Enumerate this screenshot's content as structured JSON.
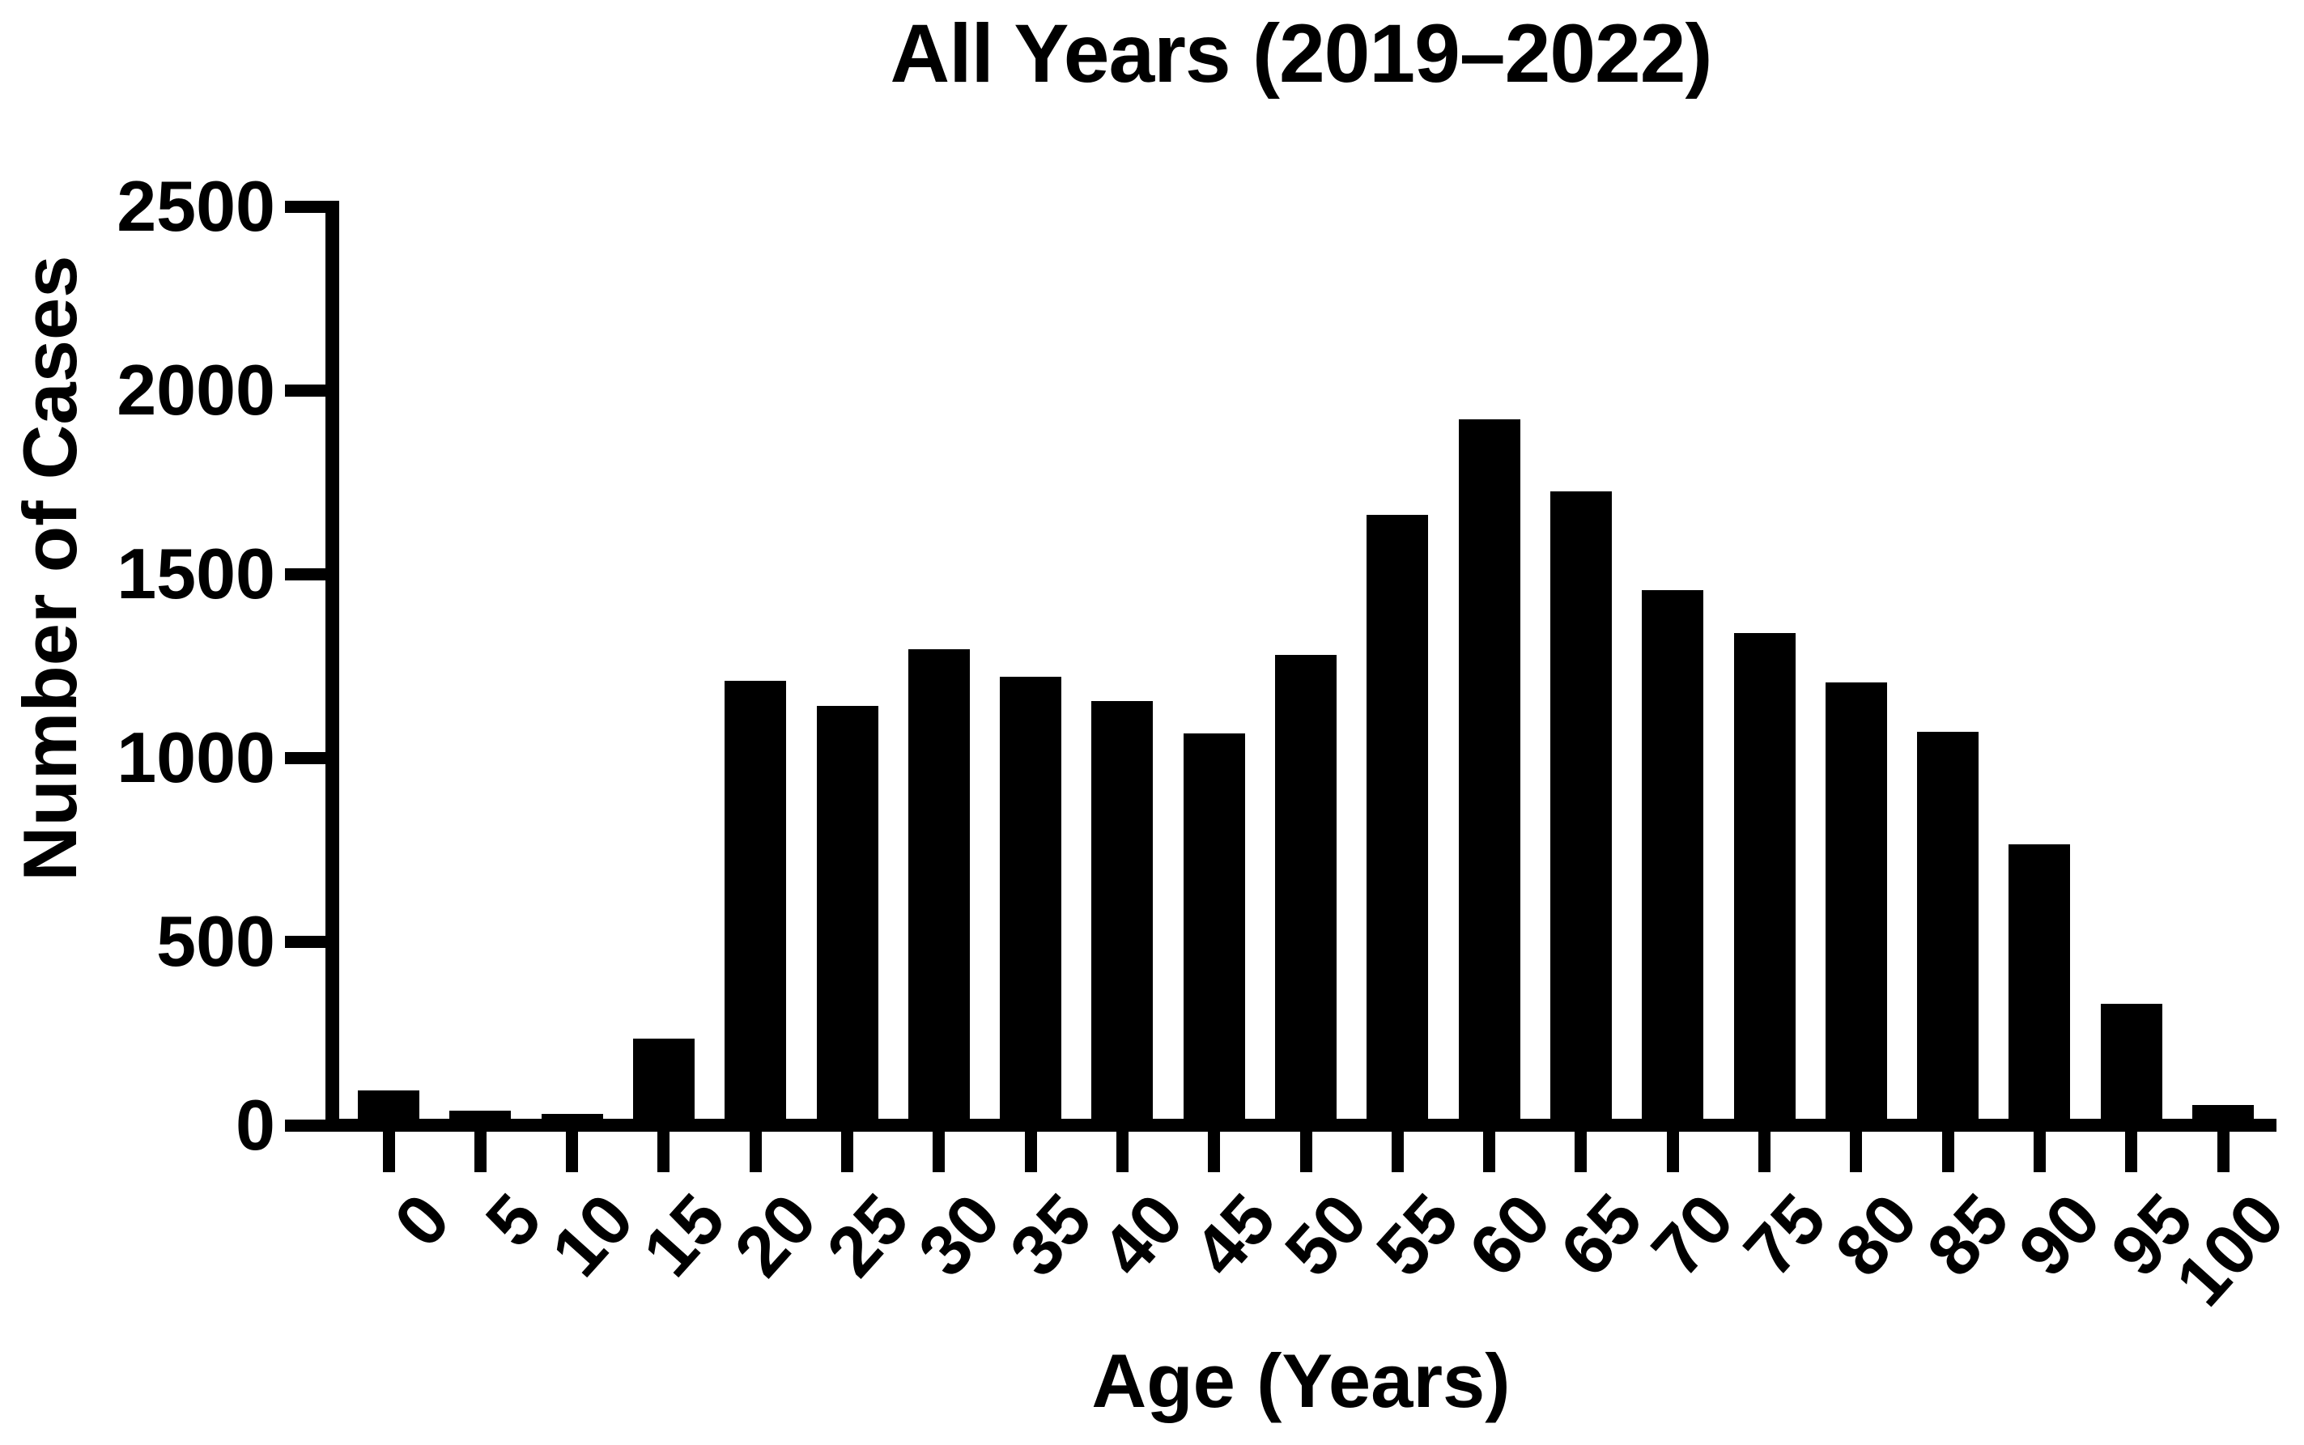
{
  "figure": {
    "title": "All Years (2019–2022)",
    "x_axis_label": "Age (Years)",
    "y_axis_label": "Number of Cases"
  },
  "chart_data": {
    "type": "bar",
    "title": "All Years (2019–2022)",
    "xlabel": "Age (Years)",
    "ylabel": "Number of Cases",
    "categories": [
      0,
      5,
      10,
      15,
      20,
      25,
      30,
      35,
      40,
      45,
      50,
      55,
      60,
      65,
      70,
      75,
      80,
      85,
      90,
      95,
      100
    ],
    "values": [
      95,
      40,
      30,
      235,
      1210,
      1140,
      1295,
      1220,
      1155,
      1065,
      1280,
      1660,
      1920,
      1725,
      1455,
      1340,
      1205,
      1070,
      765,
      330,
      55
    ],
    "ylim": [
      0,
      2500
    ],
    "yticks": [
      0,
      500,
      1000,
      1500,
      2000,
      2500
    ],
    "x_tick_labels": [
      "0",
      "5",
      "10",
      "15",
      "20",
      "25",
      "30",
      "35",
      "40",
      "45",
      "50",
      "55",
      "60",
      "65",
      "70",
      "75",
      "80",
      "85",
      "90",
      "95",
      "100"
    ],
    "x_tick_rotation_deg": 48,
    "bar_color": "#000000",
    "axis_color": "#000000",
    "background_color": "#ffffff",
    "grid": false,
    "legend": false
  }
}
